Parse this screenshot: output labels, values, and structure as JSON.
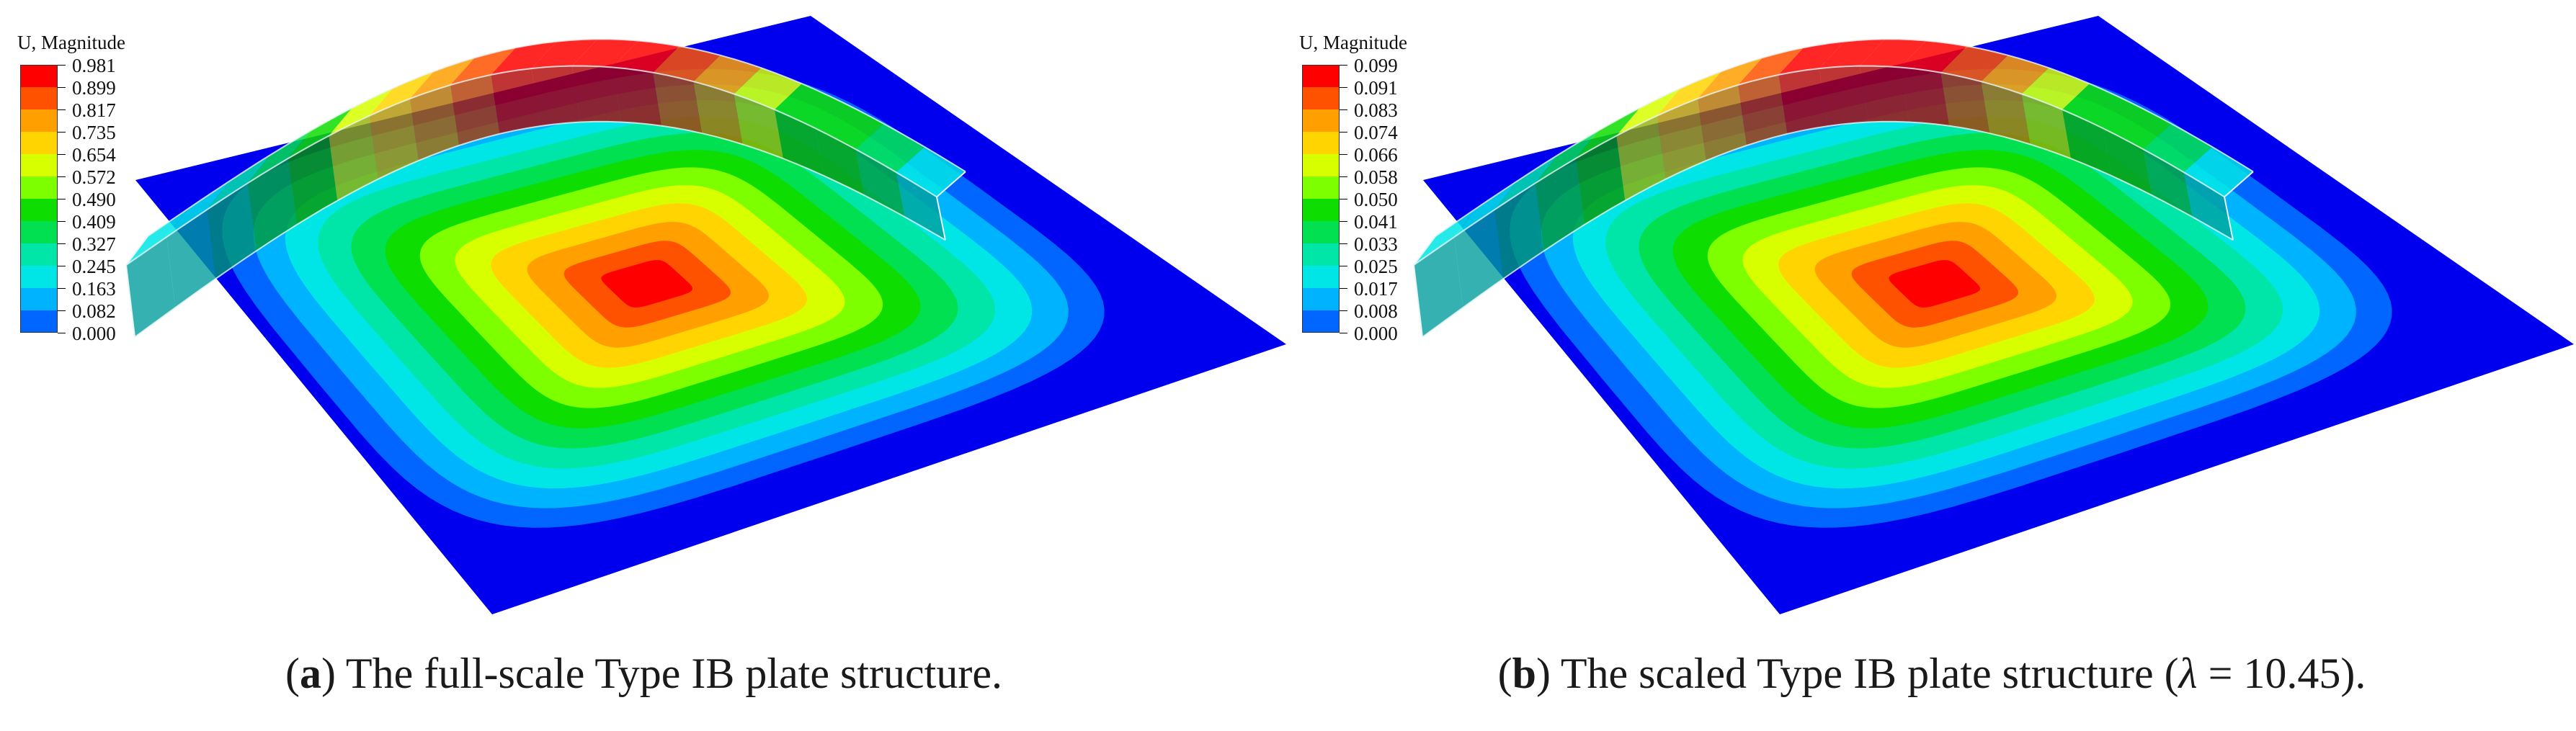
{
  "colors": {
    "contour_scale": [
      "#ff0000",
      "#ff5200",
      "#ff9f00",
      "#ffd400",
      "#d8ff00",
      "#7dff00",
      "#0ddd00",
      "#00e050",
      "#00e5a8",
      "#00e6e6",
      "#00b3ff",
      "#0066ff",
      "#0000ee"
    ],
    "plate_edge": "#0a14d8",
    "beam_side": "#1c7a24"
  },
  "panels": [
    {
      "legend": {
        "title": "U, Magnitude",
        "values": [
          "0.981",
          "0.899",
          "0.817",
          "0.735",
          "0.654",
          "0.572",
          "0.490",
          "0.409",
          "0.327",
          "0.245",
          "0.163",
          "0.082",
          "0.000"
        ]
      },
      "caption": {
        "open": "(",
        "letter": "a",
        "text": ") The full-scale Type IB plate structure."
      }
    },
    {
      "legend": {
        "title": "U, Magnitude",
        "values": [
          "0.099",
          "0.091",
          "0.083",
          "0.074",
          "0.066",
          "0.058",
          "0.050",
          "0.041",
          "0.033",
          "0.025",
          "0.017",
          "0.008",
          "0.000"
        ]
      },
      "caption": {
        "open": "(",
        "letter": "b",
        "text": ") The scaled Type IB plate structure (",
        "symbol": "λ",
        "suffix": " = 10.45)."
      }
    }
  ]
}
